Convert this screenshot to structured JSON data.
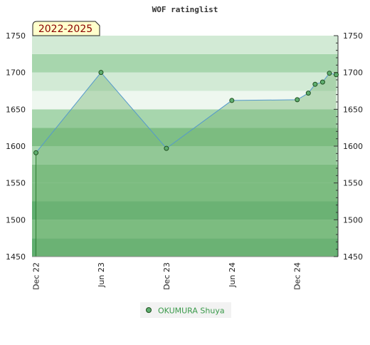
{
  "chart_data": {
    "type": "area",
    "title": "WOF ratinglist",
    "period_label": "2022-2025",
    "xlabel": "",
    "ylabel": "",
    "ylim": [
      1450,
      1750
    ],
    "yticks": [
      1450,
      1500,
      1550,
      1600,
      1650,
      1700,
      1750
    ],
    "xlim": [
      "2022-11-20",
      "2025-03-25"
    ],
    "xticks": [
      {
        "label": "Dec 22",
        "date": "2022-12-01"
      },
      {
        "label": "Jun 23",
        "date": "2023-06-01"
      },
      {
        "label": "Dec 23",
        "date": "2023-12-01"
      },
      {
        "label": "Jun 24",
        "date": "2024-06-01"
      },
      {
        "label": "Dec 24",
        "date": "2024-12-01"
      }
    ],
    "series": [
      {
        "name": "OKUMURA Shuya",
        "points": [
          {
            "x": "2022-12-01",
            "y": 1591
          },
          {
            "x": "2023-06-01",
            "y": 1700
          },
          {
            "x": "2023-12-01",
            "y": 1597
          },
          {
            "x": "2024-06-01",
            "y": 1662
          },
          {
            "x": "2024-12-01",
            "y": 1663
          },
          {
            "x": "2025-01-01",
            "y": 1672
          },
          {
            "x": "2025-01-20",
            "y": 1684
          },
          {
            "x": "2025-02-10",
            "y": 1687
          },
          {
            "x": "2025-03-01",
            "y": 1699
          },
          {
            "x": "2025-03-20",
            "y": 1697
          }
        ]
      }
    ],
    "grid": false,
    "legend_position": "bottom-center",
    "colors": {
      "line": "#5599cc",
      "area": "#7ab87a",
      "marker": "#5fae6f",
      "marker_stroke": "#1f4f1f",
      "legend_text": "#3a9a4a",
      "period_bg": "#ffffcc",
      "period_text": "#8b0000",
      "bands": [
        "#5fae6f",
        "#7fbf86",
        "#a7d6ad",
        "#d2ead5"
      ]
    }
  }
}
